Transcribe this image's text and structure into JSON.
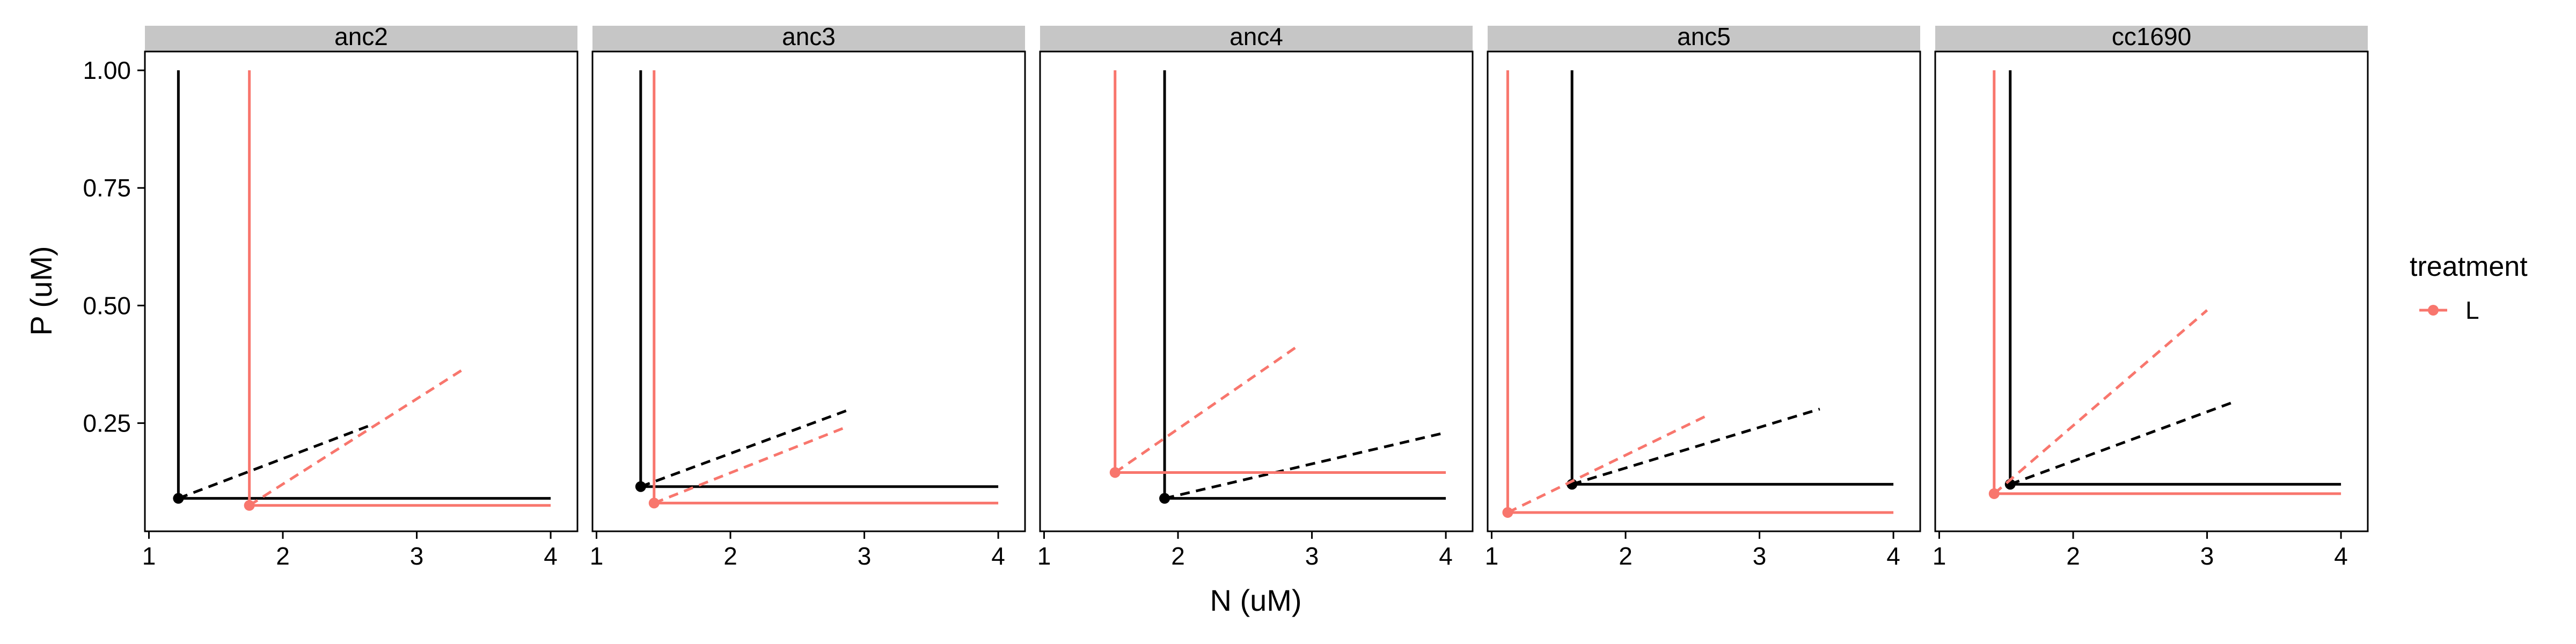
{
  "chart_data": {
    "type": "line",
    "xlabel": "N (uM)",
    "ylabel": "P (uM)",
    "xlim": [
      0.97,
      4.2
    ],
    "ylim": [
      0.02,
      1.04
    ],
    "x_ticks": [
      1,
      2,
      3,
      4
    ],
    "x_tick_labels": [
      "1",
      "2",
      "3",
      "4"
    ],
    "y_ticks": [
      0.25,
      0.5,
      0.75,
      1.0
    ],
    "y_tick_labels": [
      "0.25",
      "0.50",
      "0.75",
      "1.00"
    ],
    "grid": false,
    "legend": {
      "title": "treatment",
      "placement": "right",
      "entries": [
        {
          "label": "L",
          "color": "#F8766D"
        }
      ]
    },
    "colors": {
      "black": "#000000",
      "L": "#F8766D",
      "strip_bg": "#c6c6c6"
    },
    "facets": [
      {
        "label": "anc2",
        "series": [
          {
            "color": "black",
            "corner": [
              1.22,
              0.09
            ],
            "x_end": 4.0,
            "y_top": 1.0,
            "dashed_end": [
              2.65,
              0.245
            ]
          },
          {
            "color": "L",
            "corner": [
              1.75,
              0.075
            ],
            "x_end": 4.0,
            "y_top": 1.0,
            "dashed_end": [
              3.35,
              0.365
            ]
          }
        ]
      },
      {
        "label": "anc3",
        "series": [
          {
            "color": "black",
            "corner": [
              1.33,
              0.115
            ],
            "x_end": 4.0,
            "y_top": 1.0,
            "dashed_end": [
              2.9,
              0.28
            ]
          },
          {
            "color": "L",
            "corner": [
              1.43,
              0.08
            ],
            "x_end": 4.0,
            "y_top": 1.0,
            "dashed_end": [
              2.85,
              0.24
            ]
          }
        ]
      },
      {
        "label": "anc4",
        "series": [
          {
            "color": "black",
            "corner": [
              1.9,
              0.09
            ],
            "x_end": 4.0,
            "y_top": 1.0,
            "dashed_end": [
              4.0,
              0.23
            ]
          },
          {
            "color": "L",
            "corner": [
              1.53,
              0.145
            ],
            "x_end": 4.0,
            "y_top": 1.0,
            "dashed_end": [
              2.9,
              0.415
            ]
          }
        ]
      },
      {
        "label": "anc5",
        "series": [
          {
            "color": "black",
            "corner": [
              1.6,
              0.12
            ],
            "x_end": 4.0,
            "y_top": 1.0,
            "dashed_end": [
              3.45,
              0.28
            ]
          },
          {
            "color": "L",
            "corner": [
              1.12,
              0.06
            ],
            "x_end": 4.0,
            "y_top": 1.0,
            "dashed_end": [
              2.6,
              0.265
            ]
          }
        ]
      },
      {
        "label": "cc1690",
        "series": [
          {
            "color": "black",
            "corner": [
              1.53,
              0.12
            ],
            "x_end": 4.0,
            "y_top": 1.0,
            "dashed_end": [
              3.2,
              0.295
            ]
          },
          {
            "color": "L",
            "corner": [
              1.41,
              0.1
            ],
            "x_end": 4.0,
            "y_top": 1.0,
            "dashed_end": [
              3.0,
              0.49
            ]
          }
        ]
      }
    ]
  }
}
